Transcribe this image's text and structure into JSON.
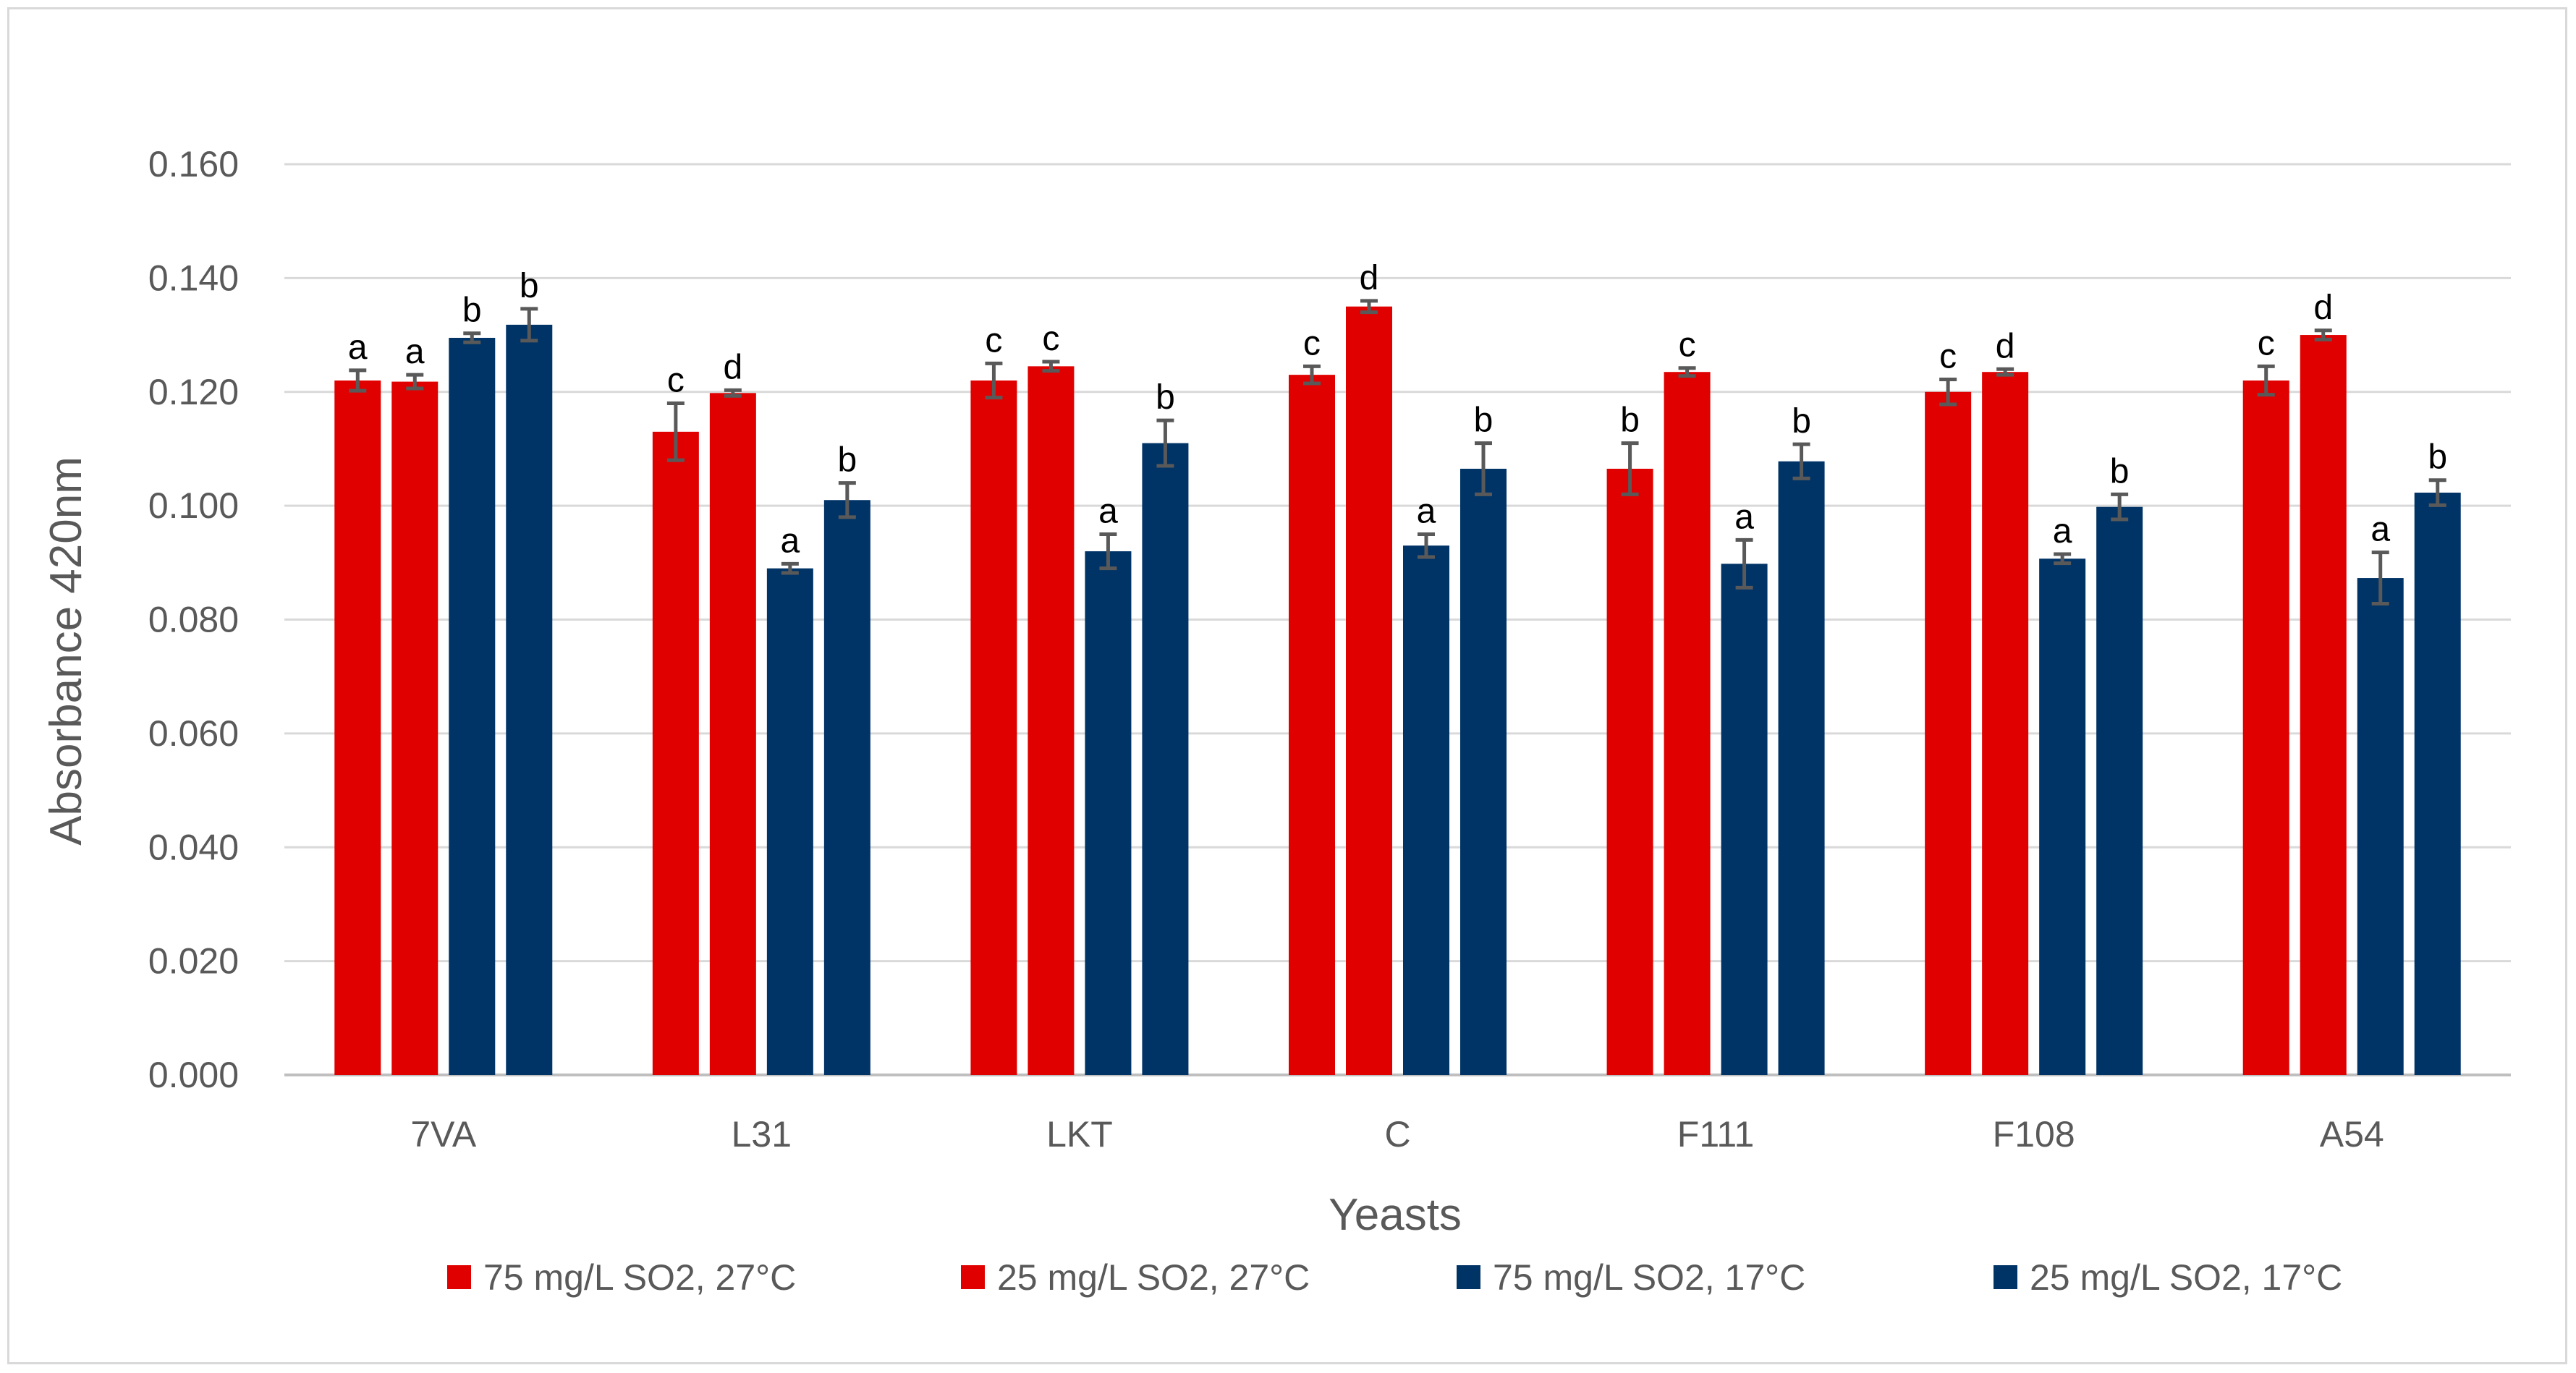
{
  "chart_data": {
    "type": "bar",
    "title": "",
    "xlabel": "Yeasts",
    "ylabel": "Absorbance 420nm",
    "ylim": [
      0,
      0.16
    ],
    "yticks": [
      "0.000",
      "0.020",
      "0.040",
      "0.060",
      "0.080",
      "0.100",
      "0.120",
      "0.140",
      "0.160"
    ],
    "grid": true,
    "legend_position": "bottom",
    "categories": [
      "7VA",
      "L31",
      "LKT",
      "C",
      "F111",
      "F108",
      "A54"
    ],
    "series": [
      {
        "name": "75 mg/L SO2, 27°C",
        "color": "#e00000",
        "values": [
          0.122,
          0.113,
          0.122,
          0.123,
          0.1065,
          0.12,
          0.122
        ],
        "errors": [
          0.0018,
          0.005,
          0.003,
          0.0015,
          0.0045,
          0.0022,
          0.0025
        ],
        "labels": [
          "a",
          "c",
          "c",
          "c",
          "b",
          "c",
          "c"
        ]
      },
      {
        "name": "25 mg/L SO2, 27°C",
        "color": "#e00000",
        "values": [
          0.1218,
          0.1198,
          0.1245,
          0.135,
          0.1235,
          0.1235,
          0.13
        ],
        "errors": [
          0.0012,
          0.0005,
          0.0008,
          0.001,
          0.0007,
          0.0005,
          0.0008
        ],
        "labels": [
          "a",
          "d",
          "c",
          "d",
          "c",
          "d",
          "d"
        ]
      },
      {
        "name": "75 mg/L SO2, 17°C",
        "color": "#003366",
        "values": [
          0.1295,
          0.089,
          0.092,
          0.093,
          0.0898,
          0.0907,
          0.0873
        ],
        "errors": [
          0.0008,
          0.0008,
          0.003,
          0.002,
          0.0042,
          0.0008,
          0.0045
        ],
        "labels": [
          "b",
          "a",
          "a",
          "a",
          "a",
          "a",
          "a"
        ]
      },
      {
        "name": "25 mg/L SO2, 17°C",
        "color": "#003366",
        "values": [
          0.1318,
          0.101,
          0.111,
          0.1065,
          0.1078,
          0.0998,
          0.1023
        ],
        "errors": [
          0.0028,
          0.003,
          0.004,
          0.0045,
          0.003,
          0.0022,
          0.0022
        ],
        "labels": [
          "b",
          "b",
          "b",
          "b",
          "b",
          "b",
          "b"
        ]
      }
    ]
  }
}
